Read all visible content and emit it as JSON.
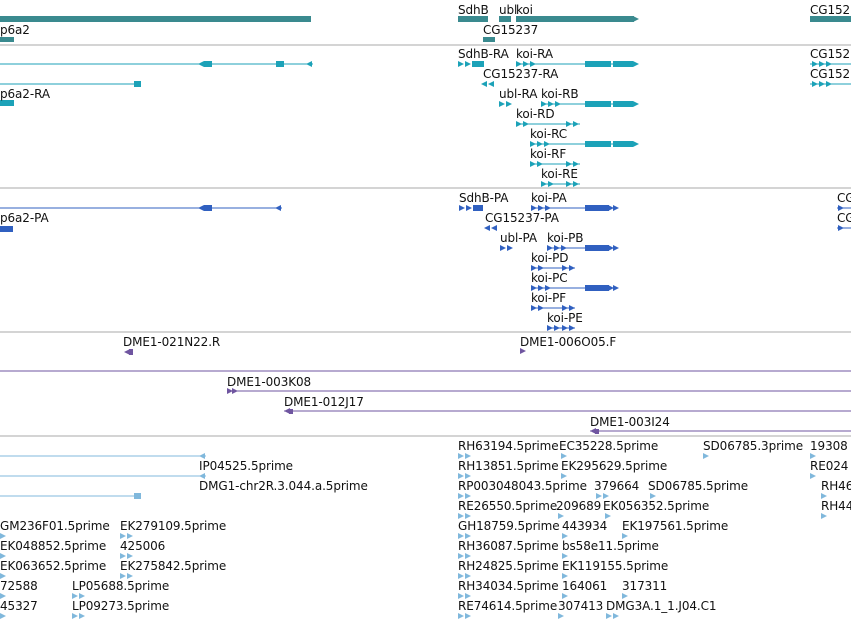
{
  "colors": {
    "gene": "#3a8a8f",
    "mrna": "#1ca2b8",
    "protein": "#3060c0",
    "bac": "#6f55a0",
    "est": "#80b8dc",
    "separator": "#a8a8a8"
  },
  "tracks": {
    "genes": {
      "labels": [
        "p6a2",
        "SdhB",
        "ubl",
        "koi",
        "CG15237",
        "CG152"
      ]
    },
    "transcripts": {
      "labels": [
        "SdhB-RA",
        "koi-RA",
        "CG15237-RA",
        "p6a2-RA",
        "ubl-RA",
        "koi-RB",
        "koi-RD",
        "koi-RC",
        "koi-RF",
        "koi-RE",
        "CG152",
        "CG152"
      ]
    },
    "proteins": {
      "labels": [
        "SdhB-PA",
        "koi-PA",
        "CG15237-PA",
        "p6a2-PA",
        "ubl-PA",
        "koi-PB",
        "koi-PD",
        "koi-PC",
        "koi-PF",
        "koi-PE",
        "CG",
        "CG"
      ]
    },
    "bac_ends": {
      "labels": [
        "DME1-021N22.R",
        "DME1-006O05.F",
        "DME1-003K08",
        "DME1-012J17",
        "DME1-003I24"
      ]
    },
    "est_hits": {
      "labels": [
        "RH63194.5prime",
        "EC35228.5prime",
        "SD06785.3prime",
        "19308",
        "IP04525.5prime",
        "RH13851.5prime",
        "EK295629.5prime",
        "RE024",
        "DMG1-chr2R.3.044.a.5prime",
        "RP003048043.5prime",
        "379664",
        "SD06785.5prime",
        "RH46",
        "RE26550.5prime",
        "209689",
        "EK056352.5prime",
        "RH44",
        "GM236F01.5prime",
        "EK279109.5prime",
        "GH18759.5prime",
        "443934",
        "EK197561.5prime",
        "EK048852.5prime",
        "425006",
        "RH36087.5prime",
        "bs58e11.5prime",
        "EK063652.5prime",
        "EK275842.5prime",
        "RH24825.5prime",
        "EK119155.5prime",
        "72588",
        "LP05688.5prime",
        "RH34034.5prime",
        "164061",
        "317311",
        "45327",
        "LP09273.5prime",
        "RE74614.5prime",
        "307413",
        "DMG3A.1_1.J04.C1"
      ]
    }
  }
}
